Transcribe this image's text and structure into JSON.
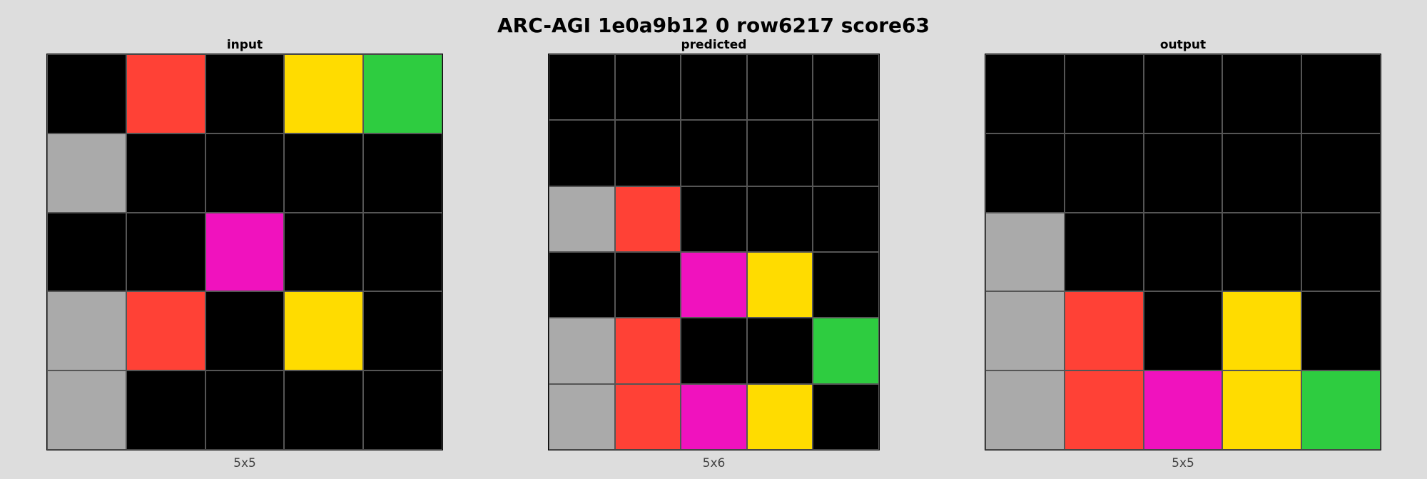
{
  "title": "ARC-AGI 1e0a9b12 0 row6217 score63",
  "palette": {
    "0": "#000000",
    "2": "#ff4136",
    "3": "#2ecc40",
    "4": "#ffdc00",
    "5": "#aaaaaa",
    "6": "#f012be"
  },
  "panels": [
    {
      "key": "input",
      "title": "input",
      "dims": "5x5",
      "grid": [
        [
          0,
          2,
          0,
          4,
          3
        ],
        [
          5,
          0,
          0,
          0,
          0
        ],
        [
          0,
          0,
          6,
          0,
          0
        ],
        [
          5,
          2,
          0,
          4,
          0
        ],
        [
          5,
          0,
          0,
          0,
          0
        ]
      ]
    },
    {
      "key": "predicted",
      "title": "predicted",
      "dims": "5x6",
      "grid": [
        [
          0,
          0,
          0,
          0,
          0
        ],
        [
          0,
          0,
          0,
          0,
          0
        ],
        [
          5,
          2,
          0,
          0,
          0
        ],
        [
          0,
          0,
          6,
          4,
          0
        ],
        [
          5,
          2,
          0,
          0,
          3
        ],
        [
          5,
          2,
          6,
          4,
          0
        ]
      ]
    },
    {
      "key": "output",
      "title": "output",
      "dims": "5x5",
      "grid": [
        [
          0,
          0,
          0,
          0,
          0
        ],
        [
          0,
          0,
          0,
          0,
          0
        ],
        [
          5,
          0,
          0,
          0,
          0
        ],
        [
          5,
          2,
          0,
          4,
          0
        ],
        [
          5,
          2,
          6,
          4,
          3
        ]
      ]
    }
  ]
}
